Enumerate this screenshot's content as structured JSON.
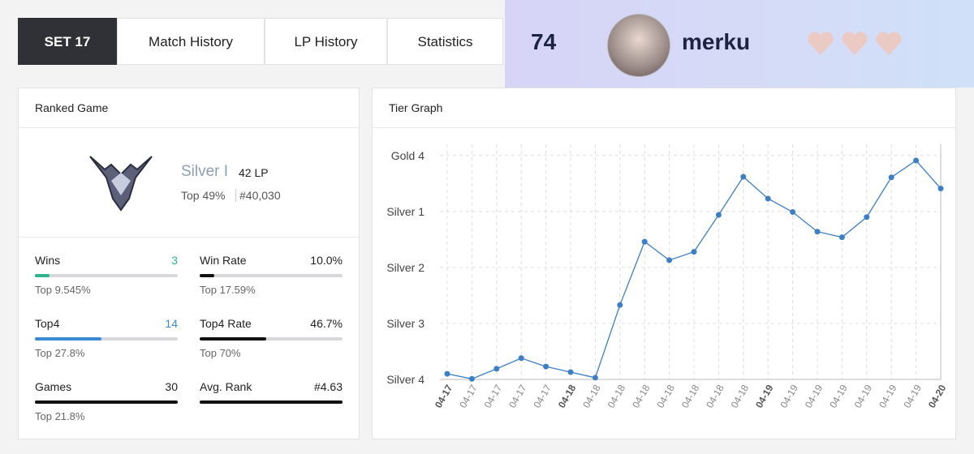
{
  "tabs": [
    "SET 17",
    "Match History",
    "LP History",
    "Statistics"
  ],
  "profile": {
    "level": "74",
    "name": "merku"
  },
  "ranked": {
    "title": "Ranked Game",
    "tier": "Silver I",
    "lp": "42 LP",
    "top": "Top 49%",
    "rank": "#40,030"
  },
  "stats": [
    {
      "label": "Wins",
      "value": "3",
      "sub": "Top 9.545%"
    },
    {
      "label": "Win Rate",
      "value": "10.0%",
      "sub": "Top 17.59%"
    },
    {
      "label": "Top4",
      "value": "14",
      "sub": "Top 27.8%"
    },
    {
      "label": "Top4 Rate",
      "value": "46.7%",
      "sub": "Top 70%"
    },
    {
      "label": "Games",
      "value": "30",
      "sub": "Top 21.8%"
    },
    {
      "label": "Avg. Rank",
      "value": "#4.63"
    }
  ],
  "chart_data": {
    "type": "line",
    "title": "Tier Graph",
    "categories": [
      "04-17",
      "04-17",
      "04-17",
      "04-17",
      "04-17",
      "04-18",
      "04-18",
      "04-18",
      "04-18",
      "04-18",
      "04-18",
      "04-18",
      "04-18",
      "04-19",
      "04-19",
      "04-19",
      "04-19",
      "04-19",
      "04-19",
      "04-19",
      "04-20"
    ],
    "series": [
      {
        "color": "#3a7fc8",
        "values": [
          10,
          1,
          19,
          38,
          23,
          13,
          3,
          133,
          246,
          213,
          228,
          294,
          362,
          323,
          299,
          264,
          254,
          290,
          361,
          391,
          341
        ]
      }
    ],
    "ylim": [
      0,
      420
    ],
    "yticks": [
      {
        "value": 0,
        "label": "Silver 4"
      },
      {
        "value": 100,
        "label": "Silver 3"
      },
      {
        "value": 200,
        "label": "Silver 2"
      },
      {
        "value": 300,
        "label": "Silver 1"
      },
      {
        "value": 400,
        "label": "Gold 4"
      }
    ],
    "grid": true
  }
}
